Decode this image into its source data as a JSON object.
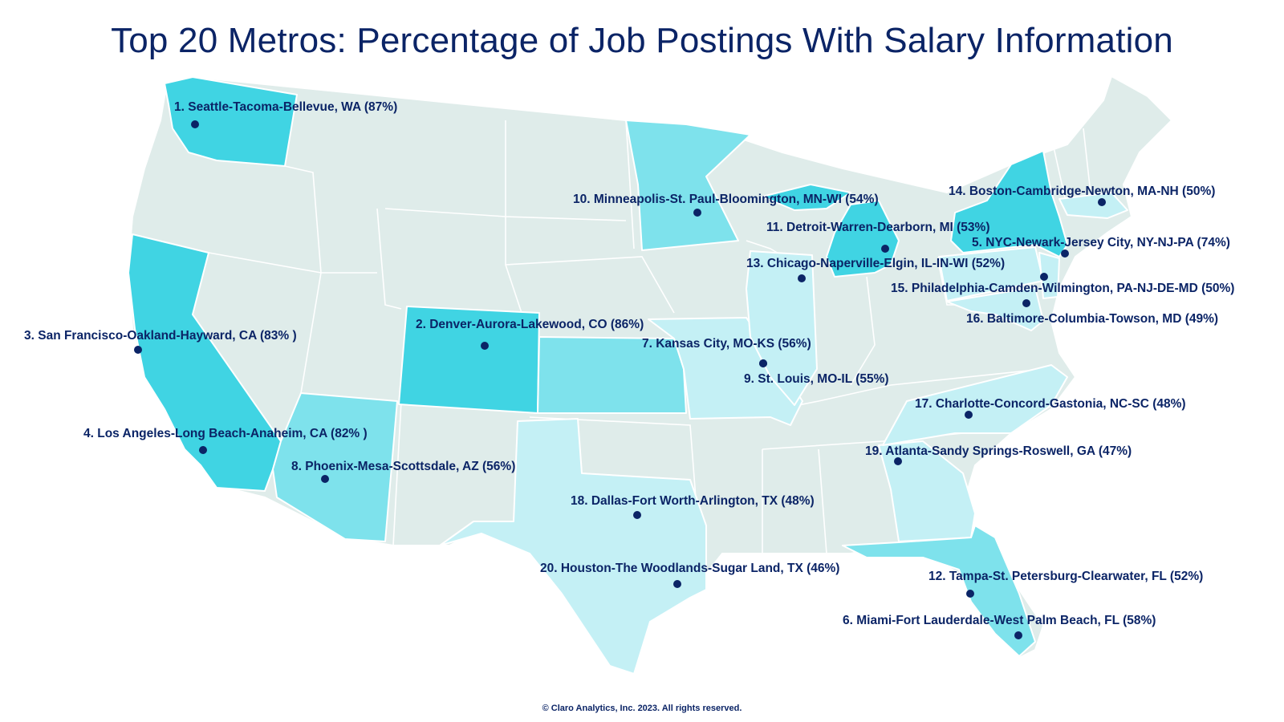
{
  "title": "Top 20 Metros: Percentage of  Job Postings With Salary Information",
  "footer": "© Claro Analytics, Inc. 2023. All rights reserved.",
  "colors": {
    "tier_high": "#40d4e3",
    "tier_mid": "#7ee2ec",
    "tier_low": "#c4f0f5",
    "base": "#dfecea",
    "text": "#0b2466"
  },
  "metros": [
    {
      "rank": 1,
      "metro": "Seattle-Tacoma-Bellevue, WA",
      "percent": 87,
      "label": "1. Seattle-Tacoma-Bellevue, WA (87%)"
    },
    {
      "rank": 2,
      "metro": "Denver-Aurora-Lakewood, CO",
      "percent": 86,
      "label": "2. Denver-Aurora-Lakewood, CO (86%)"
    },
    {
      "rank": 3,
      "metro": "San Francisco-Oakland-Hayward, CA",
      "percent": 83,
      "label": "3. San Francisco-Oakland-Hayward, CA (83% )"
    },
    {
      "rank": 4,
      "metro": "Los Angeles-Long Beach-Anaheim, CA",
      "percent": 82,
      "label": "4. Los Angeles-Long Beach-Anaheim, CA (82% )"
    },
    {
      "rank": 5,
      "metro": "NYC-Newark-Jersey City, NY-NJ-PA",
      "percent": 74,
      "label": "5. NYC-Newark-Jersey City, NY-NJ-PA (74%)"
    },
    {
      "rank": 6,
      "metro": "Miami-Fort Lauderdale-West Palm Beach, FL",
      "percent": 58,
      "label": "6. Miami-Fort Lauderdale-West Palm Beach, FL (58%)"
    },
    {
      "rank": 7,
      "metro": "Kansas City, MO-KS",
      "percent": 56,
      "label": "7. Kansas City, MO-KS (56%)"
    },
    {
      "rank": 8,
      "metro": "Phoenix-Mesa-Scottsdale, AZ",
      "percent": 56,
      "label": "8. Phoenix-Mesa-Scottsdale, AZ (56%)"
    },
    {
      "rank": 9,
      "metro": "St. Louis, MO-IL",
      "percent": 55,
      "label": "9. St. Louis, MO-IL (55%)"
    },
    {
      "rank": 10,
      "metro": "Minneapolis-St. Paul-Bloomington, MN-WI",
      "percent": 54,
      "label": "10. Minneapolis-St. Paul-Bloomington, MN-WI (54%)"
    },
    {
      "rank": 11,
      "metro": "Detroit-Warren-Dearborn, MI",
      "percent": 53,
      "label": "11. Detroit-Warren-Dearborn, MI (53%)"
    },
    {
      "rank": 12,
      "metro": "Tampa-St. Petersburg-Clearwater, FL",
      "percent": 52,
      "label": "12. Tampa-St. Petersburg-Clearwater, FL (52%)"
    },
    {
      "rank": 13,
      "metro": "Chicago-Naperville-Elgin, IL-IN-WI",
      "percent": 52,
      "label": "13. Chicago-Naperville-Elgin, IL-IN-WI (52%)"
    },
    {
      "rank": 14,
      "metro": "Boston-Cambridge-Newton, MA-NH",
      "percent": 50,
      "label": "14. Boston-Cambridge-Newton, MA-NH (50%)"
    },
    {
      "rank": 15,
      "metro": "Philadelphia-Camden-Wilmington, PA-NJ-DE-MD",
      "percent": 50,
      "label": "15. Philadelphia-Camden-Wilmington, PA-NJ-DE-MD (50%)"
    },
    {
      "rank": 16,
      "metro": "Baltimore-Columbia-Towson, MD",
      "percent": 49,
      "label": "16. Baltimore-Columbia-Towson, MD (49%)"
    },
    {
      "rank": 17,
      "metro": "Charlotte-Concord-Gastonia, NC-SC",
      "percent": 48,
      "label": "17. Charlotte-Concord-Gastonia, NC-SC (48%)"
    },
    {
      "rank": 18,
      "metro": "Dallas-Fort Worth-Arlington, TX",
      "percent": 48,
      "label": "18. Dallas-Fort Worth-Arlington, TX (48%)"
    },
    {
      "rank": 19,
      "metro": "Atlanta-Sandy Springs-Roswell, GA",
      "percent": 47,
      "label": "19. Atlanta-Sandy Springs-Roswell, GA (47%)"
    },
    {
      "rank": 20,
      "metro": "Houston-The Woodlands-Sugar Land, TX",
      "percent": 46,
      "label": "20. Houston-The Woodlands-Sugar Land, TX (46%)"
    }
  ]
}
